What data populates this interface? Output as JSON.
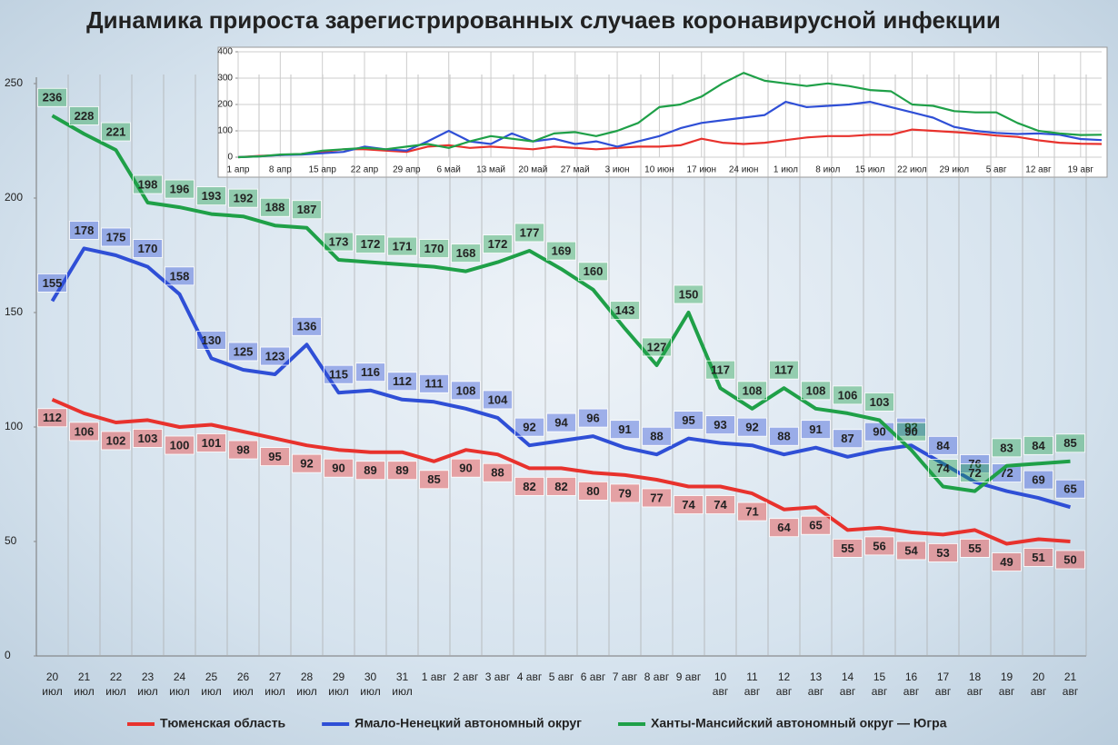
{
  "chart_data": [
    {
      "type": "line",
      "title": "Динамика прироста зарегистрированных случаев коронавирусной инфекции",
      "categories": [
        "20 июл",
        "21 июл",
        "22 июл",
        "23 июл",
        "24 июл",
        "25 июл",
        "26 июл",
        "27 июл",
        "28 июл",
        "29 июл",
        "30 июл",
        "31 июл",
        "1 авг",
        "2 авг",
        "3 авг",
        "4 авг",
        "5 авг",
        "6 авг",
        "7 авг",
        "8 авг",
        "9 авг",
        "10 авг",
        "11 авг",
        "12 авг",
        "13 авг",
        "14 авг",
        "15 авг",
        "16 авг",
        "17 авг",
        "18 авг",
        "19 авг",
        "20 авг",
        "21 авг"
      ],
      "series": [
        {
          "name": "Тюменская область",
          "color": "#e8322d",
          "label_side": "below",
          "values": [
            112,
            106,
            102,
            103,
            100,
            101,
            98,
            95,
            92,
            90,
            89,
            89,
            85,
            90,
            88,
            82,
            82,
            80,
            79,
            77,
            74,
            74,
            71,
            64,
            65,
            55,
            56,
            54,
            53,
            55,
            49,
            51,
            50
          ]
        },
        {
          "name": "Ямало-Ненецкий автономный округ",
          "color": "#2f4fd6",
          "label_side": "above",
          "values": [
            155,
            178,
            175,
            170,
            158,
            130,
            125,
            123,
            136,
            115,
            116,
            112,
            111,
            108,
            104,
            92,
            94,
            96,
            91,
            88,
            95,
            93,
            92,
            88,
            91,
            87,
            90,
            92,
            84,
            76,
            72,
            69,
            65
          ]
        },
        {
          "name": "Ханты-Мансийский автономный округ — Югра",
          "color": "#1fa048",
          "label_side": "above",
          "values": [
            236,
            228,
            221,
            198,
            196,
            193,
            192,
            188,
            187,
            173,
            172,
            171,
            170,
            168,
            172,
            177,
            169,
            160,
            143,
            127,
            150,
            117,
            108,
            117,
            108,
            106,
            103,
            90,
            74,
            72,
            83,
            84,
            85
          ]
        }
      ],
      "ylim": [
        0,
        250
      ],
      "yticks": [
        0,
        50,
        100,
        150,
        200,
        250
      ]
    },
    {
      "type": "line",
      "categories": [
        "1 апр",
        null,
        "8 апр",
        null,
        "15 апр",
        null,
        "22 апр",
        null,
        "29 апр",
        null,
        "6 май",
        null,
        "13 май",
        null,
        "20 май",
        null,
        "27 май",
        null,
        "3 июн",
        null,
        "10 июн",
        null,
        "17 июн",
        null,
        "24 июн",
        null,
        "1 июл",
        null,
        "8 июл",
        null,
        "15 июл",
        null,
        "22 июл",
        null,
        "29 июл",
        null,
        "5 авг",
        null,
        "12 авг",
        null,
        "19 авг",
        null
      ],
      "series": [
        {
          "color": "#e8322d",
          "values": [
            0,
            5,
            8,
            12,
            20,
            30,
            30,
            25,
            20,
            40,
            45,
            35,
            40,
            35,
            30,
            40,
            35,
            30,
            35,
            40,
            40,
            45,
            70,
            55,
            50,
            55,
            65,
            75,
            80,
            80,
            85,
            85,
            105,
            100,
            95,
            90,
            82,
            77,
            64,
            55,
            51,
            50
          ]
        },
        {
          "color": "#2f4fd6",
          "values": [
            0,
            3,
            8,
            10,
            15,
            20,
            40,
            30,
            25,
            60,
            100,
            60,
            50,
            90,
            60,
            70,
            50,
            60,
            40,
            60,
            80,
            110,
            130,
            140,
            150,
            160,
            210,
            190,
            195,
            200,
            210,
            190,
            170,
            150,
            115,
            100,
            92,
            88,
            90,
            85,
            69,
            65
          ]
        },
        {
          "color": "#1fa048",
          "values": [
            0,
            3,
            10,
            12,
            25,
            30,
            35,
            30,
            40,
            50,
            35,
            60,
            80,
            70,
            60,
            90,
            95,
            80,
            100,
            130,
            190,
            200,
            230,
            280,
            320,
            290,
            280,
            270,
            280,
            270,
            255,
            250,
            200,
            195,
            175,
            170,
            170,
            130,
            100,
            90,
            84,
            85
          ]
        }
      ],
      "ylim": [
        0,
        400
      ],
      "yticks": [
        0,
        100,
        200,
        300,
        400
      ]
    }
  ]
}
